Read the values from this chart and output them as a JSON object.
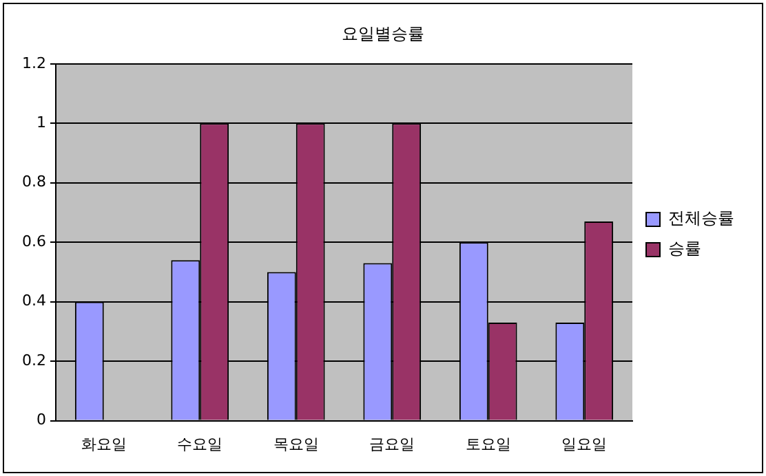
{
  "chart_data": {
    "type": "bar",
    "title": "요일별승률",
    "categories": [
      "화요일",
      "수요일",
      "목요일",
      "금요일",
      "토요일",
      "일요일"
    ],
    "series": [
      {
        "name": "전체승률",
        "color": "#9999ff",
        "values": [
          0.4,
          0.54,
          0.5,
          0.53,
          0.6,
          0.33
        ]
      },
      {
        "name": "승률",
        "color": "#993366",
        "values": [
          0,
          1,
          1,
          1,
          0.33,
          0.67
        ]
      }
    ],
    "ylim": [
      0,
      1.2
    ],
    "yticks": [
      0,
      0.2,
      0.4,
      0.6,
      0.8,
      1,
      1.2
    ],
    "grid": "y",
    "legend": "right"
  }
}
